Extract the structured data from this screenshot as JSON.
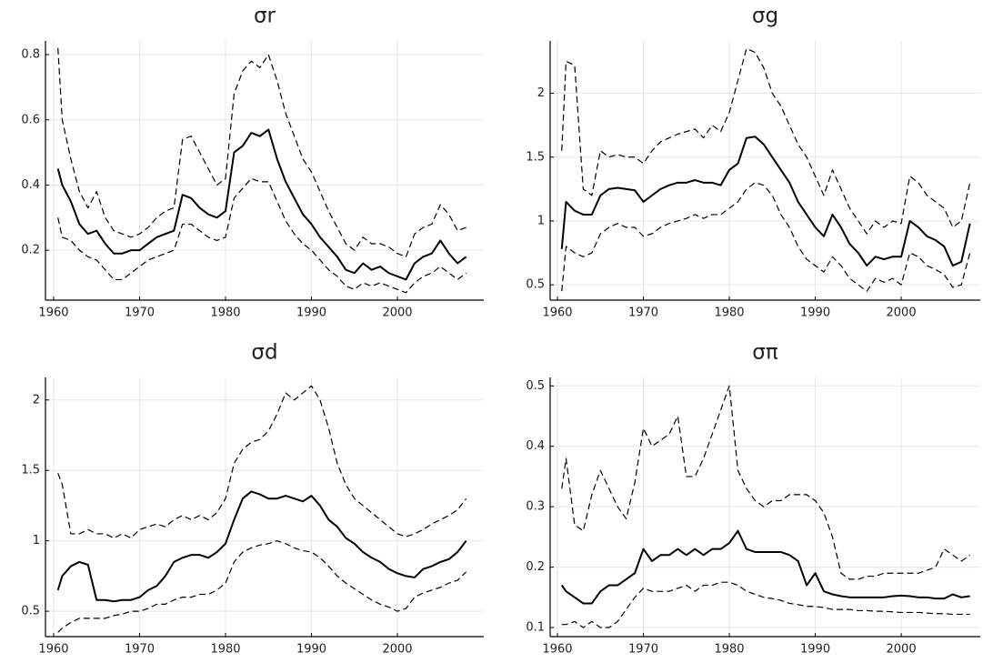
{
  "chart_data": [
    {
      "type": "line",
      "title": "σr",
      "grid": true,
      "x": [
        1960.5,
        1961,
        1962,
        1963,
        1964,
        1965,
        1966,
        1967,
        1968,
        1969,
        1970,
        1971,
        1972,
        1973,
        1974,
        1975,
        1976,
        1977,
        1978,
        1979,
        1980,
        1981,
        1982,
        1983,
        1984,
        1985,
        1986,
        1987,
        1988,
        1989,
        1990,
        1991,
        1992,
        1993,
        1994,
        1995,
        1996,
        1997,
        1998,
        1999,
        2000,
        2001,
        2002,
        2003,
        2004,
        2005,
        2006,
        2007,
        2008
      ],
      "xlim": [
        1959.05,
        2010.05
      ],
      "xticks": [
        1960,
        1970,
        1980,
        1990,
        2000
      ],
      "ylim": [
        0.047,
        0.842
      ],
      "yticks": [
        0.2,
        0.4,
        0.6,
        0.8
      ],
      "series": [
        {
          "color": "#000000",
          "dash": false,
          "values": [
            0.45,
            0.4,
            0.35,
            0.28,
            0.25,
            0.26,
            0.22,
            0.19,
            0.19,
            0.2,
            0.2,
            0.22,
            0.24,
            0.25,
            0.26,
            0.37,
            0.36,
            0.33,
            0.31,
            0.3,
            0.32,
            0.5,
            0.52,
            0.56,
            0.55,
            0.57,
            0.48,
            0.41,
            0.36,
            0.31,
            0.28,
            0.24,
            0.21,
            0.18,
            0.14,
            0.13,
            0.16,
            0.14,
            0.15,
            0.13,
            0.12,
            0.11,
            0.16,
            0.18,
            0.19,
            0.23,
            0.19,
            0.16,
            0.18
          ]
        },
        {
          "color": "#000000",
          "dash": true,
          "values": [
            0.82,
            0.6,
            0.48,
            0.38,
            0.33,
            0.38,
            0.3,
            0.26,
            0.25,
            0.24,
            0.25,
            0.27,
            0.3,
            0.32,
            0.33,
            0.54,
            0.55,
            0.5,
            0.45,
            0.4,
            0.42,
            0.68,
            0.75,
            0.78,
            0.76,
            0.8,
            0.72,
            0.62,
            0.55,
            0.48,
            0.44,
            0.38,
            0.32,
            0.27,
            0.22,
            0.2,
            0.24,
            0.22,
            0.22,
            0.21,
            0.19,
            0.18,
            0.25,
            0.27,
            0.28,
            0.34,
            0.31,
            0.26,
            0.27
          ]
        },
        {
          "color": "#000000",
          "dash": true,
          "values": [
            0.3,
            0.24,
            0.23,
            0.2,
            0.18,
            0.17,
            0.14,
            0.11,
            0.11,
            0.13,
            0.15,
            0.17,
            0.18,
            0.19,
            0.2,
            0.28,
            0.28,
            0.26,
            0.24,
            0.23,
            0.24,
            0.36,
            0.39,
            0.42,
            0.41,
            0.41,
            0.35,
            0.29,
            0.25,
            0.22,
            0.2,
            0.17,
            0.14,
            0.12,
            0.09,
            0.08,
            0.1,
            0.09,
            0.1,
            0.09,
            0.08,
            0.07,
            0.1,
            0.12,
            0.13,
            0.15,
            0.13,
            0.11,
            0.13
          ]
        }
      ]
    },
    {
      "type": "line",
      "title": "σg",
      "grid": true,
      "x": [
        1960.5,
        1961,
        1962,
        1963,
        1964,
        1965,
        1966,
        1967,
        1968,
        1969,
        1970,
        1971,
        1972,
        1973,
        1974,
        1975,
        1976,
        1977,
        1978,
        1979,
        1980,
        1981,
        1982,
        1983,
        1984,
        1985,
        1986,
        1987,
        1988,
        1989,
        1990,
        1991,
        1992,
        1993,
        1994,
        1995,
        1996,
        1997,
        1998,
        1999,
        2000,
        2001,
        2002,
        2003,
        2004,
        2005,
        2006,
        2007,
        2008
      ],
      "xlim": [
        1959.15,
        2009.2
      ],
      "xticks": [
        1960,
        1970,
        1980,
        1990,
        2000
      ],
      "ylim": [
        0.38,
        2.41
      ],
      "yticks": [
        0.5,
        1.0,
        1.5,
        2.0
      ],
      "series": [
        {
          "color": "#000000",
          "dash": false,
          "values": [
            0.78,
            1.15,
            1.08,
            1.05,
            1.05,
            1.2,
            1.25,
            1.26,
            1.25,
            1.24,
            1.15,
            1.2,
            1.25,
            1.28,
            1.3,
            1.3,
            1.32,
            1.3,
            1.3,
            1.28,
            1.4,
            1.45,
            1.65,
            1.66,
            1.6,
            1.5,
            1.4,
            1.3,
            1.15,
            1.05,
            0.95,
            0.88,
            1.05,
            0.95,
            0.82,
            0.75,
            0.65,
            0.72,
            0.7,
            0.72,
            0.72,
            1.0,
            0.95,
            0.88,
            0.85,
            0.8,
            0.65,
            0.68,
            0.98
          ]
        },
        {
          "color": "#000000",
          "dash": true,
          "values": [
            1.55,
            2.25,
            2.22,
            1.25,
            1.2,
            1.55,
            1.5,
            1.52,
            1.5,
            1.5,
            1.45,
            1.55,
            1.62,
            1.65,
            1.68,
            1.7,
            1.72,
            1.65,
            1.75,
            1.7,
            1.85,
            2.1,
            2.35,
            2.32,
            2.2,
            2.0,
            1.9,
            1.75,
            1.6,
            1.5,
            1.35,
            1.2,
            1.4,
            1.25,
            1.1,
            1.0,
            0.9,
            1.0,
            0.95,
            1.0,
            0.98,
            1.35,
            1.3,
            1.2,
            1.15,
            1.1,
            0.95,
            1.0,
            1.3
          ]
        },
        {
          "color": "#000000",
          "dash": true,
          "values": [
            0.45,
            0.8,
            0.75,
            0.72,
            0.75,
            0.9,
            0.95,
            0.98,
            0.95,
            0.95,
            0.88,
            0.9,
            0.95,
            0.98,
            1.0,
            1.02,
            1.05,
            1.02,
            1.05,
            1.05,
            1.1,
            1.15,
            1.25,
            1.3,
            1.28,
            1.2,
            1.05,
            0.95,
            0.8,
            0.7,
            0.65,
            0.6,
            0.72,
            0.65,
            0.55,
            0.5,
            0.45,
            0.55,
            0.52,
            0.55,
            0.5,
            0.75,
            0.72,
            0.65,
            0.62,
            0.58,
            0.48,
            0.5,
            0.75
          ]
        }
      ]
    },
    {
      "type": "line",
      "title": "σd",
      "grid": true,
      "x": [
        1960.5,
        1961,
        1962,
        1963,
        1964,
        1965,
        1966,
        1967,
        1968,
        1969,
        1970,
        1971,
        1972,
        1973,
        1974,
        1975,
        1976,
        1977,
        1978,
        1979,
        1980,
        1981,
        1982,
        1983,
        1984,
        1985,
        1986,
        1987,
        1988,
        1989,
        1990,
        1991,
        1992,
        1993,
        1994,
        1995,
        1996,
        1997,
        1998,
        1999,
        2000,
        2001,
        2002,
        2003,
        2004,
        2005,
        2006,
        2007,
        2008
      ],
      "xlim": [
        1959.05,
        2010.05
      ],
      "xticks": [
        1960,
        1970,
        1980,
        1990,
        2000
      ],
      "ylim": [
        0.32,
        2.16
      ],
      "yticks": [
        0.5,
        1.0,
        1.5,
        2.0
      ],
      "series": [
        {
          "color": "#000000",
          "dash": false,
          "values": [
            0.65,
            0.75,
            0.82,
            0.85,
            0.83,
            0.58,
            0.58,
            0.57,
            0.58,
            0.58,
            0.6,
            0.65,
            0.68,
            0.75,
            0.85,
            0.88,
            0.9,
            0.9,
            0.88,
            0.92,
            0.98,
            1.15,
            1.3,
            1.35,
            1.33,
            1.3,
            1.3,
            1.32,
            1.3,
            1.28,
            1.32,
            1.25,
            1.15,
            1.1,
            1.02,
            0.98,
            0.92,
            0.88,
            0.85,
            0.8,
            0.77,
            0.75,
            0.74,
            0.8,
            0.82,
            0.85,
            0.87,
            0.92,
            1.0
          ]
        },
        {
          "color": "#000000",
          "dash": true,
          "values": [
            1.48,
            1.4,
            1.05,
            1.05,
            1.08,
            1.05,
            1.05,
            1.02,
            1.05,
            1.02,
            1.08,
            1.1,
            1.12,
            1.1,
            1.15,
            1.18,
            1.15,
            1.18,
            1.15,
            1.2,
            1.3,
            1.55,
            1.65,
            1.7,
            1.72,
            1.78,
            1.9,
            2.05,
            2.0,
            2.05,
            2.1,
            2.0,
            1.8,
            1.55,
            1.4,
            1.3,
            1.25,
            1.2,
            1.15,
            1.1,
            1.05,
            1.03,
            1.05,
            1.08,
            1.12,
            1.15,
            1.18,
            1.22,
            1.3
          ]
        },
        {
          "color": "#000000",
          "dash": true,
          "values": [
            0.35,
            0.38,
            0.42,
            0.45,
            0.45,
            0.45,
            0.45,
            0.47,
            0.48,
            0.5,
            0.5,
            0.52,
            0.55,
            0.55,
            0.58,
            0.6,
            0.6,
            0.62,
            0.62,
            0.65,
            0.7,
            0.85,
            0.92,
            0.95,
            0.97,
            0.98,
            1.0,
            0.98,
            0.95,
            0.93,
            0.92,
            0.88,
            0.82,
            0.75,
            0.7,
            0.66,
            0.62,
            0.58,
            0.55,
            0.53,
            0.5,
            0.52,
            0.6,
            0.63,
            0.65,
            0.67,
            0.7,
            0.72,
            0.78
          ]
        }
      ]
    },
    {
      "type": "line",
      "title": "σπ",
      "grid": true,
      "x": [
        1960.5,
        1961,
        1962,
        1963,
        1964,
        1965,
        1966,
        1967,
        1968,
        1969,
        1970,
        1971,
        1972,
        1973,
        1974,
        1975,
        1976,
        1977,
        1978,
        1979,
        1980,
        1981,
        1982,
        1983,
        1984,
        1985,
        1986,
        1987,
        1988,
        1989,
        1990,
        1991,
        1992,
        1993,
        1994,
        1995,
        1996,
        1997,
        1998,
        1999,
        2000,
        2001,
        2002,
        2003,
        2004,
        2005,
        2006,
        2007,
        2008
      ],
      "xlim": [
        1959.15,
        2009.2
      ],
      "xticks": [
        1960,
        1970,
        1980,
        1990,
        2000
      ],
      "ylim": [
        0.085,
        0.514
      ],
      "yticks": [
        0.1,
        0.2,
        0.3,
        0.4,
        0.5
      ],
      "series": [
        {
          "color": "#000000",
          "dash": false,
          "values": [
            0.17,
            0.16,
            0.15,
            0.14,
            0.14,
            0.16,
            0.17,
            0.17,
            0.18,
            0.19,
            0.23,
            0.21,
            0.22,
            0.22,
            0.23,
            0.22,
            0.23,
            0.22,
            0.23,
            0.23,
            0.24,
            0.26,
            0.23,
            0.225,
            0.225,
            0.225,
            0.225,
            0.22,
            0.21,
            0.17,
            0.19,
            0.16,
            0.155,
            0.152,
            0.15,
            0.15,
            0.15,
            0.15,
            0.15,
            0.152,
            0.153,
            0.152,
            0.15,
            0.15,
            0.148,
            0.148,
            0.155,
            0.15,
            0.152
          ]
        },
        {
          "color": "#000000",
          "dash": true,
          "values": [
            0.33,
            0.38,
            0.27,
            0.26,
            0.32,
            0.36,
            0.33,
            0.3,
            0.28,
            0.34,
            0.43,
            0.4,
            0.41,
            0.42,
            0.45,
            0.35,
            0.35,
            0.38,
            0.42,
            0.46,
            0.5,
            0.36,
            0.33,
            0.31,
            0.3,
            0.31,
            0.31,
            0.32,
            0.32,
            0.32,
            0.31,
            0.29,
            0.25,
            0.19,
            0.18,
            0.18,
            0.185,
            0.185,
            0.19,
            0.19,
            0.19,
            0.19,
            0.19,
            0.195,
            0.2,
            0.23,
            0.22,
            0.21,
            0.22
          ]
        },
        {
          "color": "#000000",
          "dash": true,
          "values": [
            0.105,
            0.105,
            0.11,
            0.1,
            0.11,
            0.1,
            0.1,
            0.11,
            0.13,
            0.15,
            0.165,
            0.16,
            0.16,
            0.16,
            0.165,
            0.17,
            0.16,
            0.17,
            0.17,
            0.175,
            0.175,
            0.17,
            0.16,
            0.155,
            0.15,
            0.148,
            0.145,
            0.14,
            0.138,
            0.135,
            0.135,
            0.133,
            0.13,
            0.13,
            0.13,
            0.128,
            0.128,
            0.127,
            0.127,
            0.126,
            0.125,
            0.125,
            0.125,
            0.124,
            0.123,
            0.123,
            0.122,
            0.122,
            0.122
          ]
        }
      ]
    }
  ]
}
